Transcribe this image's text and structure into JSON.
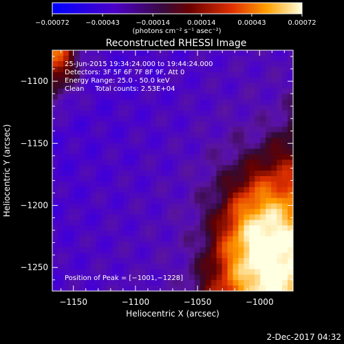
{
  "chart_data": {
    "type": "heatmap",
    "title": "Reconstructed RHESSI Image",
    "xlabel": "Heliocentric X (arcsec)",
    "ylabel": "Heliocentric Y (arcsec)",
    "xlim": [
      -1167,
      -973
    ],
    "ylim": [
      -1269,
      -1075
    ],
    "x_ticks": [
      -1150,
      -1100,
      -1050,
      -1000
    ],
    "x_tick_labels": [
      "−1150",
      "−1100",
      "−1050",
      "−1000"
    ],
    "y_ticks": [
      -1100,
      -1150,
      -1200,
      -1250
    ],
    "y_tick_labels": [
      "−1100",
      "−1150",
      "−1200",
      "−1250"
    ],
    "colorbar": {
      "range": [
        -0.00072,
        0.00072
      ],
      "ticks": [
        -0.00072,
        -0.00043,
        -0.00014,
        0.00014,
        0.00043,
        0.00072
      ],
      "tick_labels": [
        "−0.00072",
        "−0.00043",
        "−0.00014",
        "0.00014",
        "0.00043",
        "0.00072"
      ],
      "units_label": "(photons cm⁻² s⁻¹ asec⁻²)"
    },
    "annotations": [
      "25-Jun-2015 19:34:24.000 to 19:44:24.000",
      "Detectors: 3F 5F 6F 7F 8F 9F, Att 0",
      "Energy Range: 25.0 - 50.0 keV",
      "Clean     Total counts: 2.53E+04"
    ],
    "peak_label": "Position of Peak = [−1001,−1228]",
    "peak": [
      -1001,
      -1228
    ],
    "grid": false
  },
  "footer": {
    "timestamp": "2-Dec-2017 04:32"
  }
}
